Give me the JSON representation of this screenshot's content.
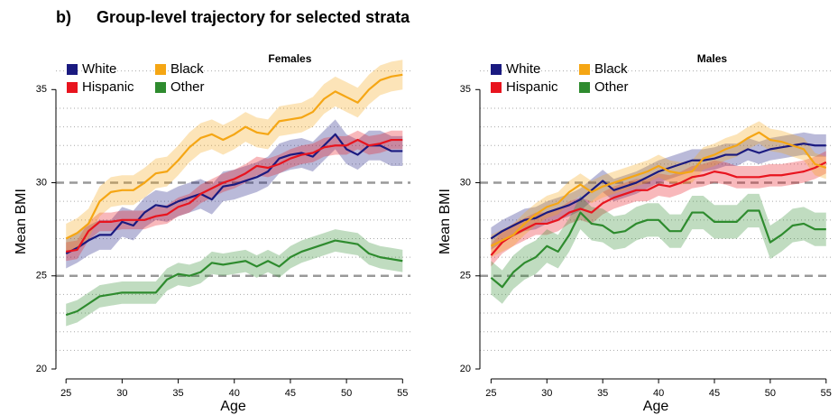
{
  "panel_label": "b)",
  "title": "Group-level trajectory for selected strata",
  "chart_data": [
    {
      "type": "line",
      "title": "Females",
      "xlabel": "Age",
      "ylabel": "Mean BMI",
      "legend": "top-left",
      "x": [
        25,
        26,
        27,
        28,
        29,
        30,
        31,
        32,
        33,
        34,
        35,
        36,
        37,
        38,
        39,
        40,
        41,
        42,
        43,
        44,
        45,
        46,
        47,
        48,
        49,
        50,
        51,
        52,
        53,
        54,
        55
      ],
      "xlim": [
        24.1,
        55.7
      ],
      "ylim": [
        20,
        37
      ],
      "xticks": [
        25,
        30,
        35,
        40,
        45,
        50,
        55
      ],
      "yticks": [
        20,
        25,
        30,
        35
      ],
      "grid_lines": [
        21,
        22,
        23,
        24,
        26,
        27,
        28,
        29,
        31,
        32,
        33,
        34,
        36
      ],
      "ref_lines": [
        25,
        30
      ],
      "series": [
        {
          "name": "White",
          "color": "#1a1a80",
          "values": [
            26.2,
            26.5,
            26.9,
            27.2,
            27.2,
            27.9,
            27.7,
            28.4,
            28.8,
            28.7,
            29.0,
            29.2,
            29.4,
            29.1,
            29.8,
            29.9,
            30.1,
            30.3,
            30.6,
            31.3,
            31.5,
            31.6,
            31.4,
            32.0,
            32.6,
            31.8,
            31.5,
            32.0,
            32.0,
            31.7,
            31.7
          ],
          "lower": [
            25.4,
            25.7,
            26.1,
            26.4,
            26.4,
            27.1,
            26.9,
            27.6,
            28.0,
            27.9,
            28.2,
            28.4,
            28.6,
            28.3,
            29.0,
            29.1,
            29.3,
            29.5,
            29.8,
            30.5,
            30.7,
            30.8,
            30.6,
            31.2,
            31.8,
            31.0,
            30.7,
            31.2,
            31.2,
            30.9,
            30.9
          ],
          "upper": [
            27.0,
            27.3,
            27.7,
            28.0,
            28.0,
            28.7,
            28.5,
            29.2,
            29.6,
            29.5,
            29.8,
            30.0,
            30.2,
            29.9,
            30.6,
            30.7,
            30.9,
            31.1,
            31.4,
            32.1,
            32.3,
            32.4,
            32.2,
            32.8,
            33.4,
            32.6,
            32.3,
            32.8,
            32.8,
            32.5,
            32.5
          ]
        },
        {
          "name": "Hispanic",
          "color": "#e8141e",
          "values": [
            26.3,
            26.4,
            27.4,
            27.9,
            27.9,
            28.0,
            28.0,
            28.0,
            28.2,
            28.3,
            28.7,
            28.9,
            29.4,
            29.7,
            30.0,
            30.2,
            30.5,
            30.9,
            30.8,
            31.0,
            31.3,
            31.5,
            31.6,
            31.9,
            32.0,
            32.0,
            32.3,
            32.0,
            32.1,
            32.3,
            32.3
          ],
          "lower": [
            25.8,
            25.9,
            26.9,
            27.4,
            27.4,
            27.5,
            27.5,
            27.5,
            27.7,
            27.8,
            28.2,
            28.4,
            28.9,
            29.2,
            29.5,
            29.7,
            30.0,
            30.4,
            30.3,
            30.5,
            30.8,
            31.0,
            31.1,
            31.4,
            31.5,
            31.5,
            31.8,
            31.5,
            31.6,
            31.8,
            31.8
          ],
          "upper": [
            26.8,
            26.9,
            27.9,
            28.4,
            28.4,
            28.5,
            28.5,
            28.5,
            28.7,
            28.8,
            29.2,
            29.4,
            29.9,
            30.2,
            30.5,
            30.7,
            31.0,
            31.4,
            31.3,
            31.5,
            31.8,
            32.0,
            32.1,
            32.4,
            32.5,
            32.5,
            32.8,
            32.5,
            32.6,
            32.8,
            32.8
          ]
        },
        {
          "name": "Black",
          "color": "#f5a614",
          "values": [
            27.0,
            27.3,
            27.8,
            29.0,
            29.5,
            29.6,
            29.6,
            30.0,
            30.5,
            30.6,
            31.2,
            31.9,
            32.4,
            32.6,
            32.3,
            32.6,
            33.0,
            32.7,
            32.6,
            33.3,
            33.4,
            33.5,
            33.8,
            34.5,
            34.9,
            34.6,
            34.3,
            35.0,
            35.5,
            35.7,
            35.8
          ],
          "lower": [
            26.2,
            26.5,
            27.0,
            28.2,
            28.7,
            28.8,
            28.8,
            29.2,
            29.7,
            29.8,
            30.4,
            31.1,
            31.6,
            31.8,
            31.5,
            31.8,
            32.2,
            31.9,
            31.8,
            32.5,
            32.6,
            32.7,
            33.0,
            33.7,
            34.1,
            33.8,
            33.5,
            34.2,
            34.7,
            34.9,
            35.0
          ],
          "upper": [
            27.8,
            28.1,
            28.6,
            29.8,
            30.3,
            30.4,
            30.4,
            30.8,
            31.3,
            31.4,
            32.0,
            32.7,
            33.2,
            33.4,
            33.1,
            33.4,
            33.8,
            33.5,
            33.4,
            34.1,
            34.2,
            34.3,
            34.6,
            35.3,
            35.7,
            35.4,
            35.1,
            35.8,
            36.3,
            36.5,
            36.6
          ]
        },
        {
          "name": "Other",
          "color": "#2e8b2e",
          "values": [
            22.9,
            23.1,
            23.5,
            23.9,
            24.0,
            24.1,
            24.1,
            24.1,
            24.1,
            24.8,
            25.1,
            25.0,
            25.2,
            25.7,
            25.6,
            25.7,
            25.8,
            25.5,
            25.8,
            25.5,
            26.0,
            26.3,
            26.5,
            26.7,
            26.9,
            26.8,
            26.7,
            26.2,
            26.0,
            25.9,
            25.8
          ],
          "lower": [
            22.3,
            22.5,
            22.9,
            23.3,
            23.4,
            23.5,
            23.5,
            23.5,
            23.5,
            24.2,
            24.5,
            24.4,
            24.6,
            25.1,
            25.0,
            25.1,
            25.2,
            24.9,
            25.2,
            24.9,
            25.4,
            25.7,
            25.9,
            26.1,
            26.3,
            26.2,
            26.1,
            25.6,
            25.4,
            25.3,
            25.2
          ],
          "upper": [
            23.5,
            23.7,
            24.1,
            24.5,
            24.6,
            24.7,
            24.7,
            24.7,
            24.7,
            25.4,
            25.7,
            25.6,
            25.8,
            26.3,
            26.2,
            26.3,
            26.4,
            26.1,
            26.4,
            26.1,
            26.6,
            26.9,
            27.1,
            27.3,
            27.5,
            27.4,
            27.3,
            26.8,
            26.6,
            26.5,
            26.4
          ]
        }
      ]
    },
    {
      "type": "line",
      "title": "Males",
      "xlabel": "Age",
      "ylabel": "Mean BMI",
      "legend": "top-left",
      "x": [
        25,
        26,
        27,
        28,
        29,
        30,
        31,
        32,
        33,
        34,
        35,
        36,
        37,
        38,
        39,
        40,
        41,
        42,
        43,
        44,
        45,
        46,
        47,
        48,
        49,
        50,
        51,
        52,
        53,
        54,
        55
      ],
      "xlim": [
        24.0,
        55.5
      ],
      "ylim": [
        20,
        37
      ],
      "xticks": [
        25,
        30,
        35,
        40,
        45,
        50,
        55
      ],
      "yticks": [
        20,
        25,
        30,
        35
      ],
      "grid_lines": [
        21,
        22,
        23,
        24,
        26,
        27,
        28,
        29,
        31,
        32,
        33,
        34,
        36
      ],
      "ref_lines": [
        25,
        30
      ],
      "series": [
        {
          "name": "White",
          "color": "#1a1a80",
          "values": [
            27.0,
            27.4,
            27.7,
            28.0,
            28.1,
            28.4,
            28.6,
            28.8,
            29.1,
            29.6,
            30.1,
            29.6,
            29.8,
            30.0,
            30.3,
            30.6,
            30.8,
            31.0,
            31.2,
            31.2,
            31.3,
            31.5,
            31.5,
            31.8,
            31.6,
            31.8,
            31.9,
            32.0,
            32.1,
            32.0,
            32.0
          ],
          "lower": [
            26.4,
            26.8,
            27.1,
            27.4,
            27.5,
            27.8,
            28.0,
            28.2,
            28.5,
            29.0,
            29.5,
            29.0,
            29.2,
            29.4,
            29.7,
            30.0,
            30.2,
            30.4,
            30.6,
            30.6,
            30.7,
            30.9,
            30.9,
            31.2,
            31.0,
            31.2,
            31.3,
            31.4,
            31.5,
            31.4,
            31.4
          ],
          "upper": [
            27.6,
            28.0,
            28.3,
            28.6,
            28.7,
            29.0,
            29.2,
            29.4,
            29.7,
            30.2,
            30.7,
            30.2,
            30.4,
            30.6,
            30.9,
            31.2,
            31.4,
            31.6,
            31.8,
            31.8,
            31.9,
            32.1,
            32.1,
            32.4,
            32.2,
            32.4,
            32.5,
            32.6,
            32.7,
            32.6,
            32.6
          ]
        },
        {
          "name": "Hispanic",
          "color": "#e8141e",
          "values": [
            26.1,
            26.8,
            27.2,
            27.5,
            27.8,
            27.8,
            28.0,
            28.4,
            28.6,
            28.4,
            28.9,
            29.2,
            29.4,
            29.6,
            29.6,
            29.9,
            29.8,
            30.0,
            30.3,
            30.4,
            30.6,
            30.5,
            30.3,
            30.3,
            30.3,
            30.4,
            30.4,
            30.5,
            30.6,
            30.8,
            31.1
          ],
          "lower": [
            25.5,
            26.2,
            26.6,
            26.9,
            27.2,
            27.2,
            27.4,
            27.8,
            28.0,
            27.8,
            28.3,
            28.6,
            28.8,
            29.0,
            29.0,
            29.3,
            29.2,
            29.4,
            29.7,
            29.8,
            30.0,
            29.9,
            29.7,
            29.7,
            29.7,
            29.8,
            29.8,
            29.9,
            30.0,
            30.2,
            30.5
          ],
          "upper": [
            26.7,
            27.4,
            27.8,
            28.1,
            28.4,
            28.4,
            28.6,
            29.0,
            29.2,
            29.0,
            29.5,
            29.8,
            30.0,
            30.2,
            30.2,
            30.5,
            30.4,
            30.6,
            30.9,
            31.0,
            31.2,
            31.1,
            30.9,
            30.9,
            30.9,
            31.0,
            31.0,
            31.1,
            31.2,
            31.4,
            31.7
          ]
        },
        {
          "name": "Black",
          "color": "#f5a614",
          "values": [
            26.6,
            26.9,
            27.2,
            27.8,
            28.3,
            28.7,
            28.9,
            29.5,
            29.9,
            29.5,
            29.8,
            30.0,
            30.2,
            30.4,
            30.6,
            30.9,
            30.6,
            30.5,
            30.6,
            31.3,
            31.5,
            31.8,
            32.0,
            32.4,
            32.7,
            32.3,
            32.2,
            32.0,
            31.8,
            31.0,
            30.8
          ],
          "lower": [
            26.0,
            26.3,
            26.6,
            27.2,
            27.7,
            28.1,
            28.3,
            28.9,
            29.3,
            28.9,
            29.2,
            29.4,
            29.6,
            29.8,
            30.0,
            30.3,
            30.0,
            29.9,
            30.0,
            30.7,
            30.9,
            31.2,
            31.4,
            31.8,
            32.1,
            31.7,
            31.6,
            31.4,
            31.2,
            30.4,
            30.2
          ],
          "upper": [
            27.2,
            27.5,
            27.8,
            28.4,
            28.9,
            29.3,
            29.5,
            30.1,
            30.5,
            30.1,
            30.4,
            30.6,
            30.8,
            31.0,
            31.2,
            31.5,
            31.2,
            31.1,
            31.2,
            31.9,
            32.1,
            32.4,
            32.6,
            33.0,
            33.3,
            32.9,
            32.8,
            32.6,
            32.4,
            31.6,
            31.4
          ]
        },
        {
          "name": "Other",
          "color": "#2e8b2e",
          "values": [
            24.9,
            24.4,
            25.2,
            25.7,
            26.0,
            26.6,
            26.3,
            27.2,
            28.4,
            27.8,
            27.7,
            27.3,
            27.4,
            27.8,
            28.0,
            28.0,
            27.4,
            27.4,
            28.4,
            28.4,
            27.9,
            27.9,
            27.9,
            28.5,
            28.5,
            26.8,
            27.2,
            27.7,
            27.8,
            27.5,
            27.5
          ],
          "lower": [
            24.0,
            23.5,
            24.3,
            24.8,
            25.1,
            25.7,
            25.4,
            26.3,
            27.5,
            26.9,
            26.8,
            26.4,
            26.5,
            26.9,
            27.1,
            27.1,
            26.5,
            26.5,
            27.5,
            27.5,
            27.0,
            27.0,
            27.0,
            27.6,
            27.6,
            25.9,
            26.3,
            26.8,
            26.9,
            26.6,
            26.6
          ],
          "upper": [
            25.8,
            25.3,
            26.1,
            26.6,
            26.9,
            27.5,
            27.2,
            28.1,
            29.3,
            28.7,
            28.6,
            28.2,
            28.3,
            28.7,
            28.9,
            28.9,
            28.3,
            28.3,
            29.3,
            29.3,
            28.8,
            28.8,
            28.8,
            29.4,
            29.4,
            27.7,
            28.1,
            28.6,
            28.7,
            28.4,
            28.4
          ]
        }
      ]
    }
  ]
}
